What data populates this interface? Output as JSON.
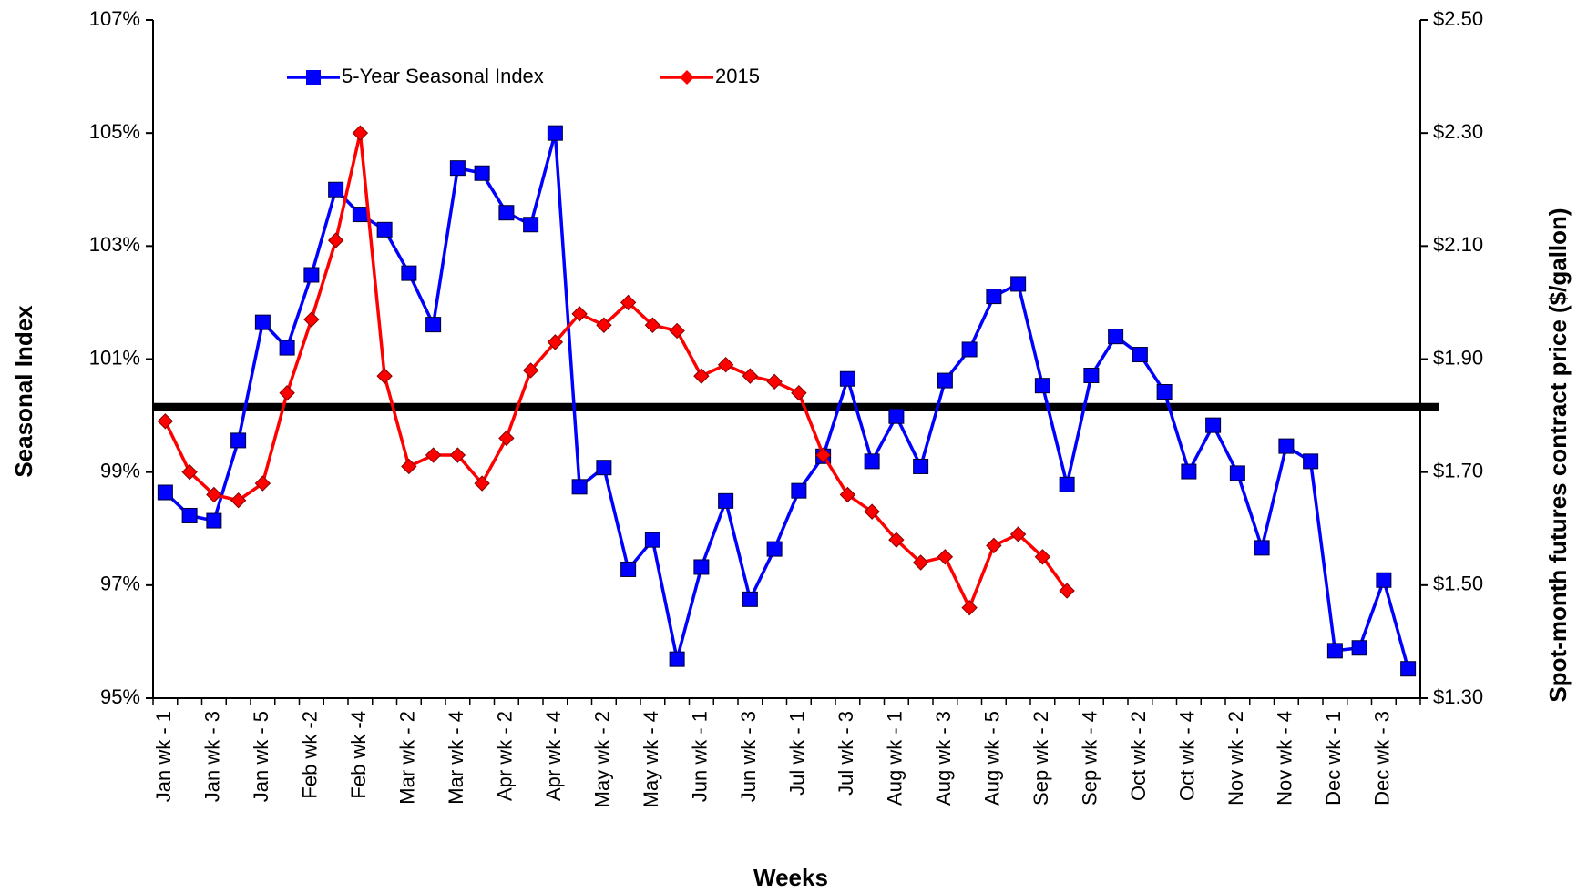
{
  "chart_data": {
    "type": "line",
    "categories": [
      "Jan wk - 1",
      null,
      "Jan wk - 3",
      null,
      "Jan wk - 5",
      null,
      "Feb wk -2",
      null,
      "Feb wk -4",
      null,
      "Mar wk - 2",
      null,
      "Mar wk - 4",
      null,
      "Apr wk - 2",
      null,
      "Apr wk - 4",
      null,
      "May wk - 2",
      null,
      "May wk - 4",
      null,
      "Jun wk - 1",
      null,
      "Jun wk - 3",
      null,
      "Jul wk - 1",
      null,
      "Jul wk - 3",
      null,
      "Aug wk - 1",
      null,
      "Aug wk - 3",
      null,
      "Aug wk - 5",
      null,
      "Sep wk - 2",
      null,
      "Sep wk - 4",
      null,
      "Oct wk - 2",
      null,
      "Oct wk - 4",
      null,
      "Nov wk - 2",
      null,
      "Nov wk - 4",
      null,
      "Dec wk - 1",
      null,
      "Dec wk - 3",
      null
    ],
    "series": [
      {
        "name": "5-Year Seasonal Index",
        "color": "#0000ff",
        "marker": "square",
        "axis": "y",
        "values": [
          98.64,
          98.23,
          98.14,
          99.56,
          101.65,
          101.2,
          102.49,
          104.0,
          103.56,
          103.29,
          102.52,
          101.61,
          104.38,
          104.29,
          103.59,
          103.38,
          105.0,
          98.74,
          99.08,
          97.28,
          97.8,
          95.69,
          97.32,
          98.49,
          96.75,
          97.64,
          98.67,
          99.28,
          100.65,
          99.19,
          99.99,
          99.1,
          100.62,
          101.17,
          102.11,
          102.33,
          100.53,
          98.78,
          100.71,
          101.4,
          101.08,
          100.42,
          99.01,
          99.83,
          98.98,
          97.66,
          99.46,
          99.19,
          95.84,
          95.89,
          97.09,
          95.52
        ]
      },
      {
        "name": "2015",
        "color": "#ff0000",
        "marker": "diamond",
        "axis": "y2",
        "values": [
          1.79,
          1.7,
          1.66,
          1.65,
          1.68,
          1.84,
          1.97,
          2.11,
          2.3,
          1.87,
          1.71,
          1.73,
          1.73,
          1.68,
          1.76,
          1.88,
          1.93,
          1.98,
          1.96,
          2.0,
          1.96,
          1.95,
          1.87,
          1.89,
          1.87,
          1.86,
          1.84,
          1.73,
          1.66,
          1.63,
          1.58,
          1.54,
          1.55,
          1.46,
          1.57,
          1.59,
          1.55,
          1.49,
          null,
          null,
          null,
          null,
          null,
          null,
          null,
          null,
          null,
          null,
          null,
          null,
          null,
          null
        ]
      }
    ],
    "reference_line": 100.15,
    "ylim": [
      95,
      107
    ],
    "yticks": [
      {
        "value": 95,
        "label": "95%"
      },
      {
        "value": 97,
        "label": "97%"
      },
      {
        "value": 99,
        "label": "99%"
      },
      {
        "value": 101,
        "label": "101%"
      },
      {
        "value": 103,
        "label": "103%"
      },
      {
        "value": 105,
        "label": "105%"
      },
      {
        "value": 107,
        "label": "107%"
      }
    ],
    "y2lim": [
      1.3,
      2.5
    ],
    "y2ticks": [
      {
        "value": 1.3,
        "label": "$1.30"
      },
      {
        "value": 1.5,
        "label": "$1.50"
      },
      {
        "value": 1.7,
        "label": "$1.70"
      },
      {
        "value": 1.9,
        "label": "$1.90"
      },
      {
        "value": 2.1,
        "label": "$2.10"
      },
      {
        "value": 2.3,
        "label": "$2.30"
      },
      {
        "value": 2.5,
        "label": "$2.50"
      }
    ],
    "xlabel": "Weeks",
    "ylabel": "Seasonal Index",
    "y2label": "Spot-month futures contract price ($/gallon)",
    "grid": false
  }
}
